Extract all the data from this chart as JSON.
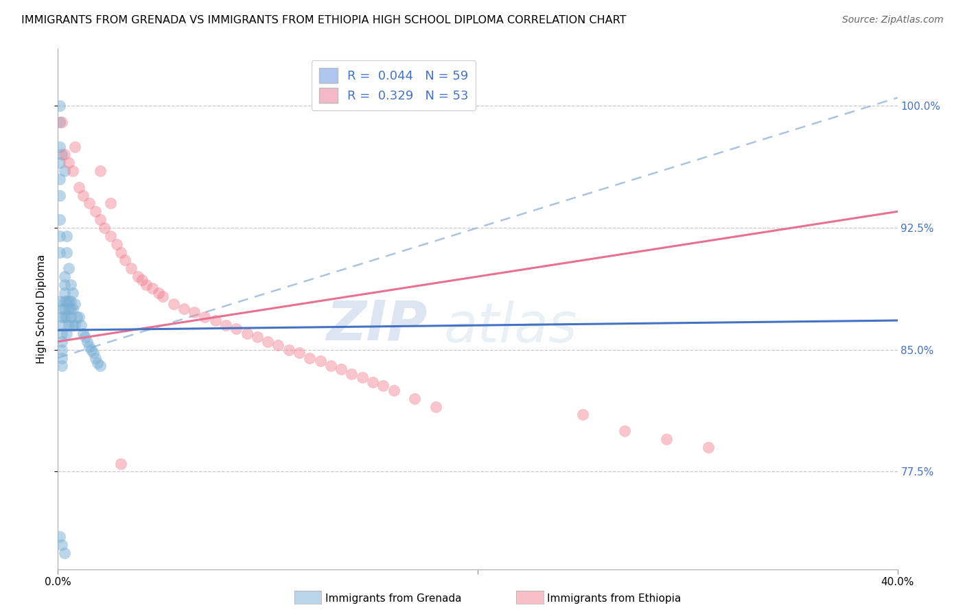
{
  "title": "IMMIGRANTS FROM GRENADA VS IMMIGRANTS FROM ETHIOPIA HIGH SCHOOL DIPLOMA CORRELATION CHART",
  "source": "Source: ZipAtlas.com",
  "ylabel": "High School Diploma",
  "legend_label_blue": "Immigrants from Grenada",
  "legend_label_pink": "Immigrants from Ethiopia",
  "blue_color": "#7bafd4",
  "pink_color": "#f08090",
  "blue_line_color": "#4472c4",
  "pink_line_color": "#e87090",
  "dash_line_color": "#aac4e0",
  "watermark_zip": "ZIP",
  "watermark_atlas": "atlas",
  "background": "#ffffff",
  "xmin": 0.0,
  "xmax": 0.4,
  "ymin": 0.715,
  "ymax": 1.035,
  "ytick_vals": [
    0.775,
    0.85,
    0.925,
    1.0
  ],
  "ytick_labels": [
    "77.5%",
    "85.0%",
    "92.5%",
    "100.0%"
  ],
  "legend_r1": "R =  0.044   N = 59",
  "legend_r2": "R =  0.329   N = 53",
  "legend_color1": "#aec6f0",
  "legend_color2": "#f4b8c8",
  "blue_x": [
    0.001,
    0.001,
    0.001,
    0.001,
    0.001,
    0.001,
    0.001,
    0.001,
    0.001,
    0.001,
    0.002,
    0.002,
    0.002,
    0.002,
    0.002,
    0.002,
    0.002,
    0.002,
    0.002,
    0.003,
    0.003,
    0.003,
    0.003,
    0.003,
    0.003,
    0.003,
    0.004,
    0.004,
    0.004,
    0.004,
    0.004,
    0.005,
    0.005,
    0.005,
    0.005,
    0.006,
    0.006,
    0.006,
    0.006,
    0.007,
    0.007,
    0.007,
    0.008,
    0.008,
    0.009,
    0.01,
    0.011,
    0.012,
    0.013,
    0.014,
    0.015,
    0.016,
    0.017,
    0.018,
    0.019,
    0.02,
    0.001,
    0.002,
    0.003
  ],
  "blue_y": [
    1.0,
    0.99,
    0.975,
    0.965,
    0.955,
    0.945,
    0.93,
    0.92,
    0.91,
    0.88,
    0.875,
    0.87,
    0.865,
    0.86,
    0.855,
    0.85,
    0.845,
    0.84,
    0.97,
    0.96,
    0.895,
    0.89,
    0.885,
    0.88,
    0.875,
    0.87,
    0.92,
    0.91,
    0.88,
    0.87,
    0.86,
    0.9,
    0.88,
    0.875,
    0.865,
    0.89,
    0.88,
    0.875,
    0.87,
    0.885,
    0.875,
    0.865,
    0.878,
    0.865,
    0.87,
    0.87,
    0.865,
    0.86,
    0.858,
    0.855,
    0.852,
    0.85,
    0.848,
    0.845,
    0.842,
    0.84,
    0.735,
    0.73,
    0.725
  ],
  "pink_x": [
    0.002,
    0.008,
    0.003,
    0.005,
    0.007,
    0.01,
    0.012,
    0.015,
    0.018,
    0.02,
    0.022,
    0.025,
    0.028,
    0.03,
    0.032,
    0.035,
    0.038,
    0.04,
    0.042,
    0.045,
    0.048,
    0.05,
    0.055,
    0.06,
    0.065,
    0.07,
    0.075,
    0.08,
    0.085,
    0.09,
    0.095,
    0.1,
    0.105,
    0.11,
    0.115,
    0.12,
    0.125,
    0.13,
    0.135,
    0.14,
    0.145,
    0.15,
    0.155,
    0.16,
    0.17,
    0.18,
    0.25,
    0.27,
    0.29,
    0.31,
    0.02,
    0.025,
    0.03
  ],
  "pink_y": [
    0.99,
    0.975,
    0.97,
    0.965,
    0.96,
    0.95,
    0.945,
    0.94,
    0.935,
    0.93,
    0.925,
    0.92,
    0.915,
    0.91,
    0.905,
    0.9,
    0.895,
    0.893,
    0.89,
    0.888,
    0.885,
    0.883,
    0.878,
    0.875,
    0.873,
    0.87,
    0.868,
    0.865,
    0.863,
    0.86,
    0.858,
    0.855,
    0.853,
    0.85,
    0.848,
    0.845,
    0.843,
    0.84,
    0.838,
    0.835,
    0.833,
    0.83,
    0.828,
    0.825,
    0.82,
    0.815,
    0.81,
    0.8,
    0.795,
    0.79,
    0.96,
    0.94,
    0.78
  ],
  "blue_trendline_x0": 0.0,
  "blue_trendline_x1": 0.4,
  "blue_trendline_y0": 0.862,
  "blue_trendline_y1": 0.868,
  "pink_trendline_x0": 0.0,
  "pink_trendline_x1": 0.4,
  "pink_trendline_y0": 0.855,
  "pink_trendline_y1": 0.935,
  "dash_trendline_x0": 0.0,
  "dash_trendline_x1": 0.4,
  "dash_trendline_y0": 0.845,
  "dash_trendline_y1": 1.005
}
